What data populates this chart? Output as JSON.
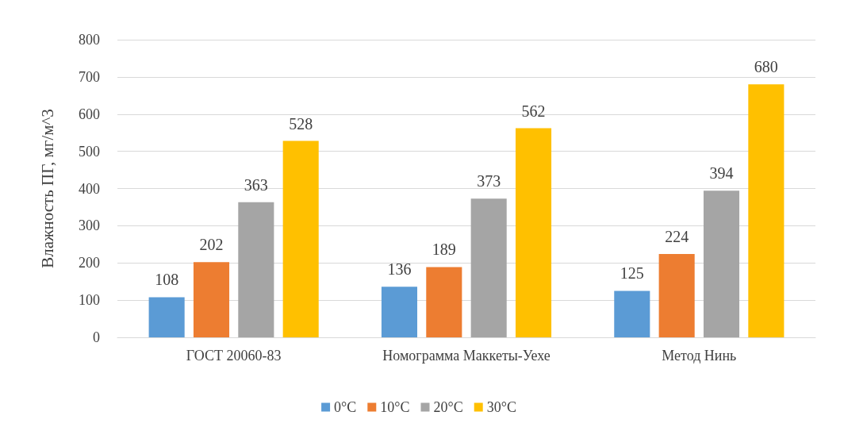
{
  "chart_data": {
    "type": "bar",
    "ylabel": "Влажность ПГ, мг/м^3",
    "categories": [
      "ГОСТ 20060-83",
      "Номограмма Маккеты-Уехе",
      "Метод Нинь"
    ],
    "series": [
      {
        "name": "0°C",
        "color": "#5b9bd5",
        "values": [
          108,
          136,
          125
        ]
      },
      {
        "name": "10°C",
        "color": "#ed7d31",
        "values": [
          202,
          189,
          224
        ]
      },
      {
        "name": "20°C",
        "color": "#a5a5a5",
        "values": [
          363,
          373,
          394
        ]
      },
      {
        "name": "30°C",
        "color": "#ffc000",
        "values": [
          528,
          562,
          680
        ]
      }
    ],
    "ylim": [
      0,
      800
    ],
    "yticks": [
      0,
      100,
      200,
      300,
      400,
      500,
      600,
      700,
      800
    ],
    "grid": "y",
    "legend": "bottom",
    "data_labels": true
  }
}
